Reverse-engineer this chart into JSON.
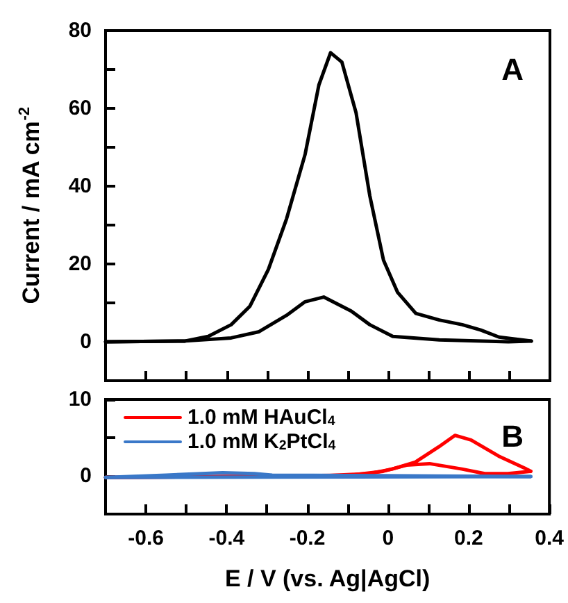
{
  "chart_data": [
    {
      "type": "line",
      "title": "A",
      "ylabel": "Current / mA cm$^{-2}$",
      "xlim": [
        -0.7,
        0.4
      ],
      "ylim": [
        -10,
        80
      ],
      "tick_labels": "y",
      "grid": false,
      "legend": false,
      "marker": "none",
      "line_style": "solid",
      "xticks": [
        {
          "value": -0.7,
          "label": null
        },
        {
          "value": -0.6,
          "label": null
        },
        {
          "value": -0.5,
          "label": null
        },
        {
          "value": -0.4,
          "label": null
        },
        {
          "value": -0.3,
          "label": null
        },
        {
          "value": -0.2,
          "label": null
        },
        {
          "value": -0.1,
          "label": null
        },
        {
          "value": 0,
          "label": null
        },
        {
          "value": 0.1,
          "label": null
        },
        {
          "value": 0.2,
          "label": null
        },
        {
          "value": 0.3,
          "label": null
        },
        {
          "value": 0.4,
          "label": null
        }
      ],
      "yticks": [
        {
          "value": -10,
          "label": null
        },
        0,
        {
          "value": 10,
          "label": null
        },
        20,
        {
          "value": 30,
          "label": null
        },
        40,
        {
          "value": 50,
          "label": null
        },
        60,
        {
          "value": 70,
          "label": null
        },
        80
      ],
      "series": [
        {
          "color": "#000000",
          "x": [
            -0.7,
            -0.503,
            -0.446,
            -0.389,
            -0.343,
            -0.297,
            -0.252,
            -0.206,
            -0.172,
            -0.143,
            -0.115,
            -0.08,
            -0.046,
            -0.012,
            0.023,
            0.068,
            0.126,
            0.183,
            0.229,
            0.274,
            0.354
          ],
          "values": [
            0,
            0.2,
            1.4,
            4.4,
            9.1,
            18.6,
            31.6,
            48.2,
            66,
            74.3,
            71.9,
            58.9,
            37.6,
            21,
            12.7,
            7.3,
            5.6,
            4.4,
            3,
            1.2,
            0.2
          ]
        },
        {
          "color": "#000000",
          "x": [
            -0.7,
            -0.503,
            -0.389,
            -0.32,
            -0.252,
            -0.206,
            -0.16,
            -0.092,
            -0.046,
            0.011,
            0.126,
            0.297,
            0.354
          ],
          "values": [
            0,
            0.2,
            1,
            2.6,
            6.8,
            10.3,
            11.5,
            7.9,
            4.4,
            1.4,
            0.5,
            0,
            0.2
          ]
        }
      ]
    },
    {
      "type": "line",
      "title": "B",
      "xlabel": "E / V (vs. Ag|AgCl)",
      "xlim": [
        -0.7,
        0.4
      ],
      "ylim": [
        -5,
        10
      ],
      "grid": false,
      "legend": "top left",
      "marker": "none",
      "line_style": "solid",
      "xticks": [
        {
          "value": -0.7,
          "label": null
        },
        -0.6,
        {
          "value": -0.5,
          "label": null
        },
        -0.4,
        {
          "value": -0.3,
          "label": null
        },
        -0.2,
        {
          "value": -0.1,
          "label": null
        },
        0,
        {
          "value": 0.1,
          "label": null
        },
        0.2,
        {
          "value": 0.3,
          "label": null
        },
        0.4
      ],
      "yticks": [
        {
          "value": -5,
          "label": null
        },
        0,
        {
          "value": 5,
          "label": null
        },
        10
      ],
      "series": [
        {
          "name": "1.0 mM HAuCl$_{4}$",
          "color": "#ff0000",
          "x": [
            -0.7,
            -0.16,
            -0.046,
            0.011,
            0.068,
            0.126,
            0.166,
            0.206,
            0.274,
            0.343,
            0.354
          ],
          "values": [
            -0.2,
            0,
            0.3,
            0.9,
            1.8,
            3.8,
            5.3,
            4.7,
            2.6,
            0.9,
            0.6
          ]
        },
        {
          "color": "#ff0000",
          "x": [
            -0.7,
            -0.389,
            -0.092,
            -0.012,
            0.046,
            0.103,
            0.183,
            0.24,
            0.297,
            0.354
          ],
          "values": [
            -0.2,
            -0.1,
            0.1,
            0.6,
            1.4,
            1.6,
            0.9,
            0.3,
            0.3,
            0.6
          ]
        },
        {
          "name": "1.0 mM K$_{2}$PtCl$_{4}$",
          "color": "#3a78c8",
          "x": [
            -0.7,
            -0.55,
            -0.41,
            -0.331,
            -0.287,
            0.354
          ],
          "values": [
            -0.2,
            0.1,
            0.4,
            0.3,
            0.1,
            -0.1
          ]
        },
        {
          "color": "#3a78c8",
          "x": [
            -0.7,
            0.354
          ],
          "values": [
            -0.2,
            -0.1
          ]
        }
      ]
    }
  ]
}
